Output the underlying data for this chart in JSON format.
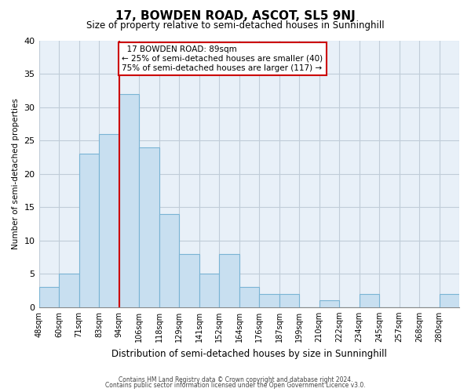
{
  "title": "17, BOWDEN ROAD, ASCOT, SL5 9NJ",
  "subtitle": "Size of property relative to semi-detached houses in Sunninghill",
  "xlabel": "Distribution of semi-detached houses by size in Sunninghill",
  "ylabel": "Number of semi-detached properties",
  "bin_labels": [
    "48sqm",
    "60sqm",
    "71sqm",
    "83sqm",
    "94sqm",
    "106sqm",
    "118sqm",
    "129sqm",
    "141sqm",
    "152sqm",
    "164sqm",
    "176sqm",
    "187sqm",
    "199sqm",
    "210sqm",
    "222sqm",
    "234sqm",
    "245sqm",
    "257sqm",
    "268sqm",
    "280sqm"
  ],
  "bar_heights": [
    3,
    5,
    23,
    26,
    32,
    24,
    14,
    8,
    5,
    8,
    3,
    2,
    2,
    0,
    1,
    0,
    2,
    0,
    0,
    0,
    2
  ],
  "bar_color": "#c8dff0",
  "bar_edge_color": "#7ab4d4",
  "vline_index": 4,
  "vline_color": "#cc0000",
  "ylim": [
    0,
    40
  ],
  "yticks": [
    0,
    5,
    10,
    15,
    20,
    25,
    30,
    35,
    40
  ],
  "annotation_title": "17 BOWDEN ROAD: 89sqm",
  "annotation_line1": "← 25% of semi-detached houses are smaller (40)",
  "annotation_line2": "75% of semi-detached houses are larger (117) →",
  "annotation_box_color": "#ffffff",
  "annotation_box_edge": "#cc0000",
  "footer1": "Contains HM Land Registry data © Crown copyright and database right 2024.",
  "footer2": "Contains public sector information licensed under the Open Government Licence v3.0.",
  "bg_color": "#ffffff",
  "plot_bg_color": "#e8f0f8",
  "grid_color": "#c0ccd8"
}
